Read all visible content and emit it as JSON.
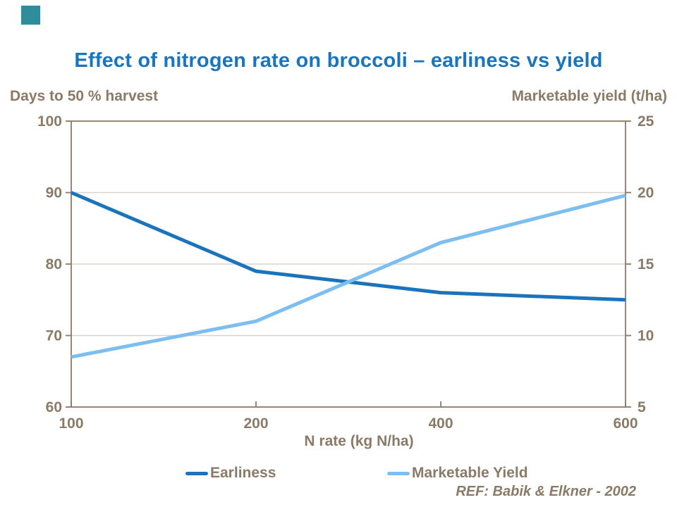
{
  "slide": {
    "title": "Effect of nitrogen rate on broccoli – earliness vs yield",
    "ref": "REF: Babik & Elkner - 2002"
  },
  "colors": {
    "title_blue": "#1B75BC",
    "earliness_blue": "#1B74BB",
    "yield_blue": "#7CBEF0",
    "axis_brown": "#8A7A67",
    "gridline": "#D8D4CC",
    "corner_teal": "#2E8C9C"
  },
  "chart_data": {
    "type": "line",
    "title": "Effect of nitrogen rate on broccoli – earliness vs yield",
    "categories": [
      100,
      200,
      400,
      600
    ],
    "series": [
      {
        "name": "Earliness",
        "axis": "left",
        "color": "#1B74BB",
        "values": [
          90,
          79,
          76,
          75
        ]
      },
      {
        "name": "Marketable Yield",
        "axis": "right",
        "color": "#7CBEF0",
        "values": [
          8.5,
          11,
          16.5,
          19.8
        ]
      }
    ],
    "left_axis": {
      "label": "Days to 50 % harvest",
      "min": 60,
      "max": 100,
      "ticks": [
        100,
        90,
        80,
        70,
        60
      ]
    },
    "right_axis": {
      "label": "Marketable yield (t/ha)",
      "min": 5,
      "max": 25,
      "ticks": [
        25,
        20,
        15,
        10,
        5
      ]
    },
    "x_axis": {
      "label": "N rate (kg N/ha)",
      "tick_labels": [
        "100",
        "200",
        "400",
        "600"
      ]
    },
    "grid": "horizontal",
    "legend_position": "bottom",
    "annotation": "REF: Babik & Elkner - 2002"
  }
}
